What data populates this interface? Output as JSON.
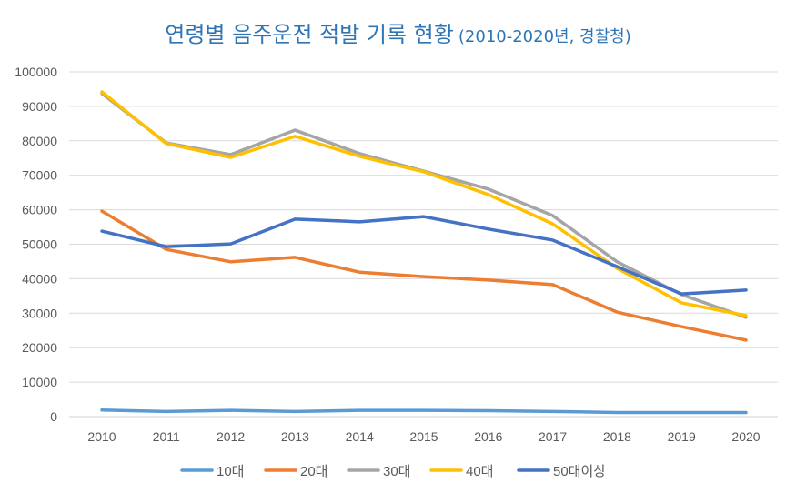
{
  "chart_data": {
    "type": "line",
    "title": "연령별 음주운전 적발 기록 현황",
    "subtitle": "(2010-2020년, 경찰청)",
    "title_color": "#2e75b6",
    "x": [
      "2010",
      "2011",
      "2012",
      "2013",
      "2014",
      "2015",
      "2016",
      "2017",
      "2018",
      "2019",
      "2020"
    ],
    "ylim": [
      0,
      100000
    ],
    "yticks": [
      0,
      10000,
      20000,
      30000,
      40000,
      50000,
      60000,
      70000,
      80000,
      90000,
      100000
    ],
    "grid": true,
    "legend": "bottom",
    "series": [
      {
        "name": "10대",
        "color": "#5b9bd5",
        "values": [
          1900,
          1500,
          1800,
          1500,
          1800,
          1800,
          1700,
          1500,
          1200,
          1200,
          1200
        ]
      },
      {
        "name": "20대",
        "color": "#ed7d31",
        "values": [
          59600,
          48500,
          44900,
          46200,
          41900,
          40600,
          39600,
          38300,
          30300,
          26100,
          22200
        ]
      },
      {
        "name": "30대",
        "color": "#a5a5a5",
        "values": [
          93700,
          79400,
          76000,
          83100,
          76300,
          71200,
          66000,
          58300,
          44900,
          35400,
          28800
        ]
      },
      {
        "name": "40대",
        "color": "#ffc000",
        "values": [
          94200,
          79200,
          75200,
          81300,
          75500,
          71000,
          64400,
          55900,
          43000,
          33000,
          29300
        ]
      },
      {
        "name": "50대이상",
        "color": "#4472c4",
        "values": [
          53800,
          49300,
          50100,
          57300,
          56500,
          58000,
          54400,
          51200,
          43500,
          35600,
          36700
        ]
      }
    ]
  }
}
